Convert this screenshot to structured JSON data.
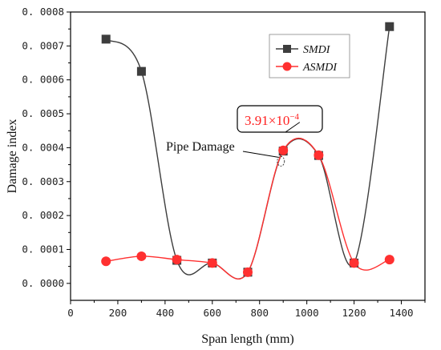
{
  "chart_data": {
    "type": "line",
    "xlabel": "Span length (mm)",
    "ylabel": "Damage index",
    "xlim": [
      0,
      1500
    ],
    "ylim": [
      -5e-05,
      0.0008
    ],
    "xticks": [
      "0",
      "200",
      "400",
      "600",
      "800",
      "1000",
      "1200",
      "1400"
    ],
    "xtick_values": [
      0,
      200,
      400,
      600,
      800,
      1000,
      1200,
      1400
    ],
    "yticks": [
      "0. 0000",
      "0. 0001",
      "0. 0002",
      "0. 0003",
      "0. 0004",
      "0. 0005",
      "0. 0006",
      "0. 0007",
      "0. 0008"
    ],
    "ytick_values": [
      0,
      0.0001,
      0.0002,
      0.0003,
      0.0004,
      0.0005,
      0.0006,
      0.0007,
      0.0008
    ],
    "grid": false,
    "legend_position": "top-right",
    "series": [
      {
        "name": "SMDI",
        "color": "#3d3d3d",
        "marker": "square",
        "x": [
          150,
          300,
          450,
          600,
          750,
          900,
          1050,
          1200,
          1350
        ],
        "values": [
          0.00072,
          0.000625,
          6.8e-05,
          6e-05,
          3.3e-05,
          0.00039,
          0.000377,
          6e-05,
          0.000757
        ]
      },
      {
        "name": "ASMDI",
        "color": "#ff3030",
        "marker": "circle",
        "x": [
          150,
          300,
          450,
          600,
          750,
          900,
          1050,
          1200,
          1350
        ],
        "values": [
          6.5e-05,
          8e-05,
          7e-05,
          6e-05,
          3.3e-05,
          0.000392,
          0.000378,
          6e-05,
          7e-05
        ]
      }
    ],
    "annotations": {
      "damage_label": "Pipe Damage",
      "damage_point": {
        "x": 890,
        "y": 0.00036
      },
      "peak_value_mantissa": "3.91",
      "peak_value_times": "×",
      "peak_value_base": "10",
      "peak_value_exponent": "−4",
      "peak_callout_point": {
        "x": 970,
        "y": 0.000475
      }
    }
  }
}
